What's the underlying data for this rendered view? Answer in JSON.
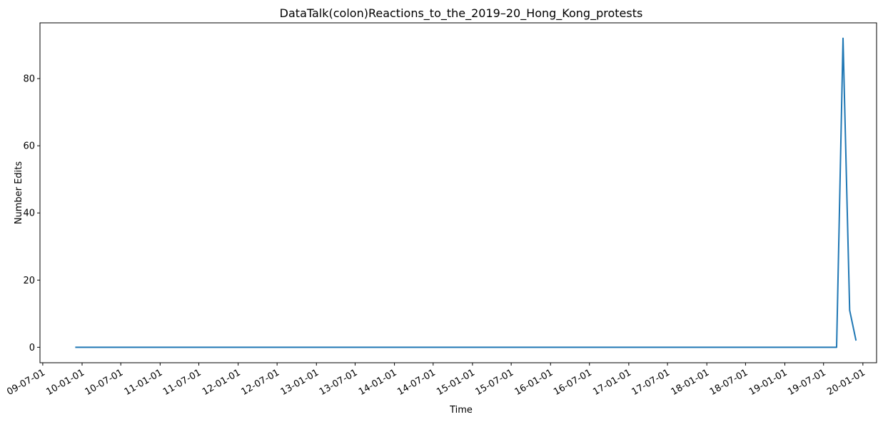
{
  "chart_data": {
    "type": "line",
    "title": "DataTalk(colon)Reactions_to_the_2019–20_Hong_Kong_protests",
    "xlabel": "Time",
    "ylabel": "Number Edits",
    "xlim": [
      "2009-06-18",
      "2020-03-05"
    ],
    "ylim": [
      -4.6,
      96.6
    ],
    "grid": false,
    "legend": "none",
    "x_ticks": [
      "2009-07-01",
      "2010-01-01",
      "2010-07-01",
      "2011-01-01",
      "2011-07-01",
      "2012-01-01",
      "2012-07-01",
      "2013-01-01",
      "2013-07-01",
      "2014-01-01",
      "2014-07-01",
      "2015-01-01",
      "2015-07-01",
      "2016-01-01",
      "2016-07-01",
      "2017-01-01",
      "2017-07-01",
      "2018-01-01",
      "2018-07-01",
      "2019-01-01",
      "2019-07-01",
      "2020-01-01"
    ],
    "x_tick_labels": [
      "09-07-01",
      "10-01-01",
      "10-07-01",
      "11-01-01",
      "11-07-01",
      "12-01-01",
      "12-07-01",
      "13-01-01",
      "13-07-01",
      "14-01-01",
      "14-07-01",
      "15-01-01",
      "15-07-01",
      "16-01-01",
      "16-07-01",
      "17-01-01",
      "17-07-01",
      "18-01-01",
      "18-07-01",
      "19-01-01",
      "19-07-01",
      "20-01-01"
    ],
    "y_ticks": [
      0,
      20,
      40,
      60,
      80
    ],
    "y_tick_labels": [
      "0",
      "20",
      "40",
      "60",
      "80"
    ],
    "series": [
      {
        "color": "#1f77b4",
        "x": [
          "2009-11-30",
          "2019-08-31",
          "2019-09-30",
          "2019-10-31",
          "2019-11-30"
        ],
        "y": [
          0,
          0,
          92,
          11,
          2
        ]
      }
    ]
  }
}
